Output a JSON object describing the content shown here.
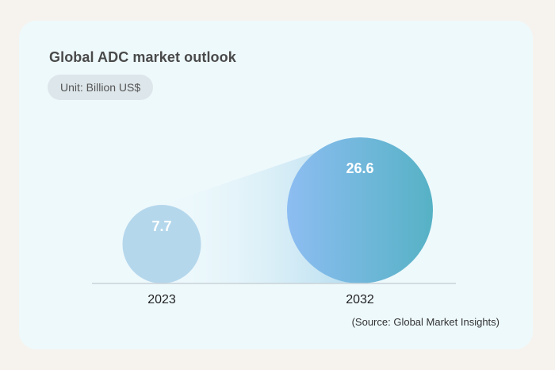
{
  "chart_data": {
    "type": "bubble",
    "title": "Global ADC market outlook",
    "unit_label": "Unit: Billion US$",
    "categories": [
      "2023",
      "2032"
    ],
    "values": [
      7.7,
      26.6
    ],
    "value_labels": [
      "7.7",
      "26.6"
    ],
    "source": "(Source: Global Market Insights)",
    "colors": {
      "bubble_small": "#b5d7ec",
      "bubble_large_start": "#8dbdf2",
      "bubble_large_end": "#56b2c5",
      "baseline": "#c8d3d8",
      "card_background": "#eef9fc",
      "page_background": "#f6f3ee"
    }
  }
}
